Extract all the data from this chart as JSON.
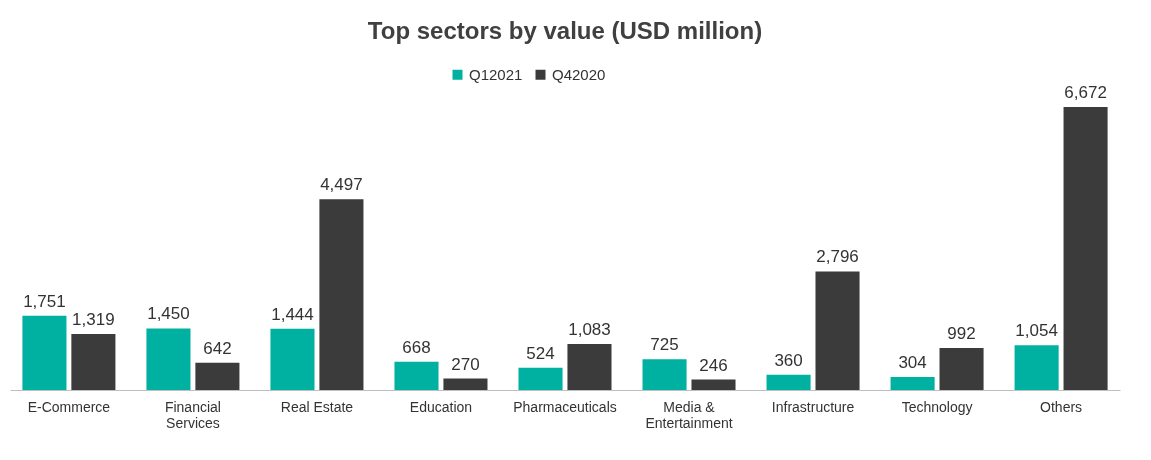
{
  "chart_data": {
    "type": "bar",
    "title": "Top sectors by value (USD million)",
    "categories": [
      "E-Commerce",
      "Financial Services",
      "Real Estate",
      "Education",
      "Pharmaceuticals",
      "Media & Entertainment",
      "Infrastructure",
      "Technology",
      "Others"
    ],
    "series": [
      {
        "name": "Q12021",
        "color": "#00b0a0",
        "values": [
          1751,
          1450,
          1444,
          668,
          524,
          725,
          360,
          304,
          1054
        ],
        "value_labels": [
          "1,751",
          "1,450",
          "1,444",
          "668",
          "524",
          "725",
          "360",
          "304",
          "1,054"
        ]
      },
      {
        "name": "Q42020",
        "color": "#3b3b3b",
        "values": [
          1319,
          642,
          4497,
          270,
          1083,
          246,
          2796,
          992,
          6672
        ],
        "value_labels": [
          "1,319",
          "642",
          "4,497",
          "270",
          "1,083",
          "246",
          "2,796",
          "992",
          "6,672"
        ]
      }
    ],
    "legend": "top",
    "grid": false
  }
}
